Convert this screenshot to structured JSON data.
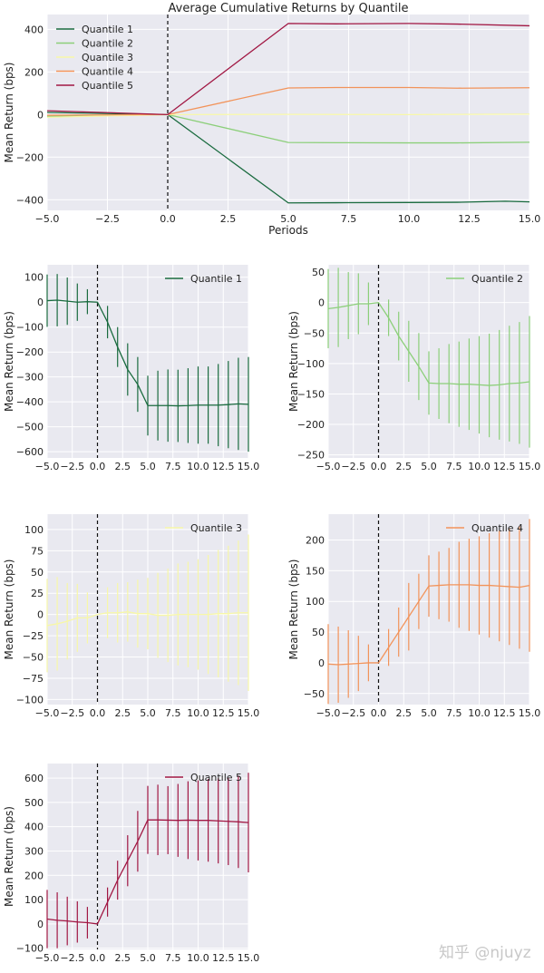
{
  "colors": {
    "Quantile 1": "#1a6b3f",
    "Quantile 2": "#8ccf7a",
    "Quantile 3": "#f7f7a8",
    "Quantile 4": "#f2935a",
    "Quantile 5": "#a11743",
    "plot_bg": "#e9e9f0",
    "grid": "#ffffff",
    "text": "#222222"
  },
  "watermark": "知乎 @njuyz",
  "chart_data": [
    {
      "type": "line",
      "title": "Average Cumulative Returns by Quantile",
      "xlabel": "Periods",
      "ylabel": "Mean Return (bps)",
      "xlim": [
        -5,
        15
      ],
      "ylim": [
        -450,
        470
      ],
      "xticks": [
        -5,
        -2.5,
        0,
        2.5,
        5,
        7.5,
        10,
        12.5,
        15
      ],
      "xtick_labels": [
        "−5.0",
        "−2.5",
        "0.0",
        "2.5",
        "5.0",
        "7.5",
        "10.0",
        "12.5",
        "15.0"
      ],
      "yticks": [
        -400,
        -200,
        0,
        200,
        400
      ],
      "ytick_labels": [
        "−400",
        "−200",
        "0",
        "200",
        "400"
      ],
      "legend_position": "top-left",
      "vline_x": 0,
      "series": [
        {
          "name": "Quantile 1",
          "x": [
            -5,
            0,
            5,
            7,
            10,
            12,
            14,
            15
          ],
          "values": [
            10,
            0,
            -415,
            -414,
            -413,
            -412,
            -407,
            -410
          ]
        },
        {
          "name": "Quantile 2",
          "x": [
            -5,
            0,
            5,
            7,
            10,
            12,
            15
          ],
          "values": [
            -8,
            0,
            -131,
            -132,
            -133,
            -133,
            -130
          ]
        },
        {
          "name": "Quantile 3",
          "x": [
            -5,
            0,
            5,
            10,
            15
          ],
          "values": [
            -13,
            0,
            1,
            0,
            2
          ]
        },
        {
          "name": "Quantile 4",
          "x": [
            -5,
            0,
            5,
            7,
            10,
            12,
            15
          ],
          "values": [
            -3,
            0,
            125,
            127,
            127,
            124,
            126
          ]
        },
        {
          "name": "Quantile 5",
          "x": [
            -5,
            0,
            5,
            7,
            10,
            12,
            15
          ],
          "values": [
            18,
            0,
            428,
            426,
            428,
            425,
            417
          ]
        }
      ]
    },
    {
      "type": "line",
      "title": "",
      "xlabel": "",
      "ylabel": "Mean Return (bps)",
      "legend": "Quantile 1",
      "xlim": [
        -5,
        15
      ],
      "ylim": [
        -625,
        150
      ],
      "xticks": [
        -5,
        -2.5,
        0,
        2.5,
        5,
        7.5,
        10,
        12.5,
        15
      ],
      "xtick_labels": [
        "−5.0",
        "−2.5",
        "0.0",
        "2.5",
        "5.0",
        "7.5",
        "10.0",
        "12.5",
        "15.0"
      ],
      "yticks": [
        -600,
        -500,
        -400,
        -300,
        -200,
        -100,
        0,
        100
      ],
      "ytick_labels": [
        "−600",
        "−500",
        "−400",
        "−300",
        "−200",
        "−100",
        "0",
        "100"
      ],
      "legend_position": "top-right",
      "vline_x": 0,
      "x": [
        -5,
        -4,
        -3,
        -2,
        -1,
        0,
        1,
        2,
        3,
        4,
        5,
        6,
        7,
        8,
        9,
        10,
        11,
        12,
        13,
        14,
        15
      ],
      "values": [
        6,
        8,
        4,
        0,
        2,
        0,
        -80,
        -180,
        -270,
        -330,
        -415,
        -415,
        -415,
        -416,
        -415,
        -413,
        -413,
        -413,
        -411,
        -408,
        -410
      ],
      "errors": [
        105,
        105,
        95,
        75,
        50,
        0,
        65,
        80,
        105,
        110,
        120,
        140,
        145,
        145,
        150,
        155,
        155,
        165,
        175,
        185,
        190
      ]
    },
    {
      "type": "line",
      "title": "",
      "xlabel": "",
      "ylabel": "Mean Return (bps)",
      "legend": "Quantile 2",
      "xlim": [
        -5,
        15
      ],
      "ylim": [
        -255,
        62
      ],
      "xticks": [
        -5,
        -2.5,
        0,
        2.5,
        5,
        7.5,
        10,
        12.5,
        15
      ],
      "xtick_labels": [
        "−5.0",
        "−2.5",
        "0.0",
        "2.5",
        "5.0",
        "7.5",
        "10.0",
        "12.5",
        "15.0"
      ],
      "yticks": [
        -250,
        -200,
        -150,
        -100,
        -50,
        0,
        50
      ],
      "ytick_labels": [
        "−250",
        "−200",
        "−150",
        "−100",
        "−50",
        "0",
        "50"
      ],
      "legend_position": "top-right",
      "vline_x": 0,
      "x": [
        -5,
        -4,
        -3,
        -2,
        -1,
        0,
        1,
        2,
        3,
        4,
        5,
        6,
        7,
        8,
        9,
        10,
        11,
        12,
        13,
        14,
        15
      ],
      "values": [
        -10,
        -8,
        -5,
        -2,
        -2,
        0,
        -25,
        -55,
        -80,
        -105,
        -132,
        -133,
        -133,
        -134,
        -134,
        -135,
        -136,
        -135,
        -133,
        -132,
        -130
      ],
      "errors": [
        65,
        65,
        55,
        50,
        35,
        0,
        30,
        40,
        50,
        55,
        52,
        58,
        65,
        70,
        75,
        80,
        85,
        90,
        95,
        100,
        108
      ]
    },
    {
      "type": "line",
      "title": "",
      "xlabel": "",
      "ylabel": "Mean Return (bps)",
      "legend": "Quantile 3",
      "xlim": [
        -5,
        15
      ],
      "ylim": [
        -106,
        118
      ],
      "xticks": [
        -5,
        -2.5,
        0,
        2.5,
        5,
        7.5,
        10,
        12.5,
        15
      ],
      "xtick_labels": [
        "−5.0",
        "−2.5",
        "0.0",
        "2.5",
        "5.0",
        "7.5",
        "10.0",
        "12.5",
        "15.0"
      ],
      "yticks": [
        -100,
        -75,
        -50,
        -25,
        0,
        25,
        50,
        75,
        100
      ],
      "ytick_labels": [
        "−100",
        "−75",
        "−50",
        "−25",
        "0",
        "25",
        "50",
        "75",
        "100"
      ],
      "legend_position": "top-right",
      "vline_x": 0,
      "x": [
        -5,
        -4,
        -3,
        -2,
        -1,
        0,
        1,
        2,
        3,
        4,
        5,
        6,
        7,
        8,
        9,
        10,
        11,
        12,
        13,
        14,
        15
      ],
      "values": [
        -13,
        -11,
        -8,
        -4,
        -4,
        0,
        2,
        2,
        3,
        1,
        1,
        -1,
        -1,
        0,
        0,
        0,
        0,
        1,
        1,
        2,
        2
      ],
      "errors": [
        55,
        55,
        45,
        40,
        30,
        0,
        30,
        35,
        35,
        40,
        42,
        50,
        55,
        60,
        62,
        65,
        70,
        75,
        80,
        85,
        92
      ]
    },
    {
      "type": "line",
      "title": "",
      "xlabel": "",
      "ylabel": "Mean Return (bps)",
      "legend": "Quantile 4",
      "xlim": [
        -5,
        15
      ],
      "ylim": [
        -68,
        242
      ],
      "xticks": [
        -5,
        -2.5,
        0,
        2.5,
        5,
        7.5,
        10,
        12.5,
        15
      ],
      "xtick_labels": [
        "−5.0",
        "−2.5",
        "0.0",
        "2.5",
        "5.0",
        "7.5",
        "10.0",
        "12.5",
        "15.0"
      ],
      "yticks": [
        -50,
        0,
        50,
        100,
        150,
        200
      ],
      "ytick_labels": [
        "−50",
        "0",
        "50",
        "100",
        "150",
        "200"
      ],
      "legend_position": "top-right",
      "vline_x": 0,
      "x": [
        -5,
        -4,
        -3,
        -2,
        -1,
        0,
        1,
        2,
        3,
        4,
        5,
        6,
        7,
        8,
        9,
        10,
        11,
        12,
        13,
        14,
        15
      ],
      "values": [
        -2,
        -3,
        -2,
        -1,
        0,
        0,
        25,
        50,
        75,
        100,
        125,
        126,
        127,
        127,
        127,
        126,
        126,
        125,
        124,
        123,
        126
      ],
      "errors": [
        65,
        62,
        55,
        45,
        30,
        0,
        30,
        40,
        55,
        45,
        50,
        55,
        60,
        70,
        75,
        80,
        85,
        90,
        95,
        100,
        108
      ]
    },
    {
      "type": "line",
      "title": "",
      "xlabel": "",
      "ylabel": "Mean Return (bps)",
      "legend": "Quantile 5",
      "xlim": [
        -5,
        15
      ],
      "ylim": [
        -105,
        660
      ],
      "xticks": [
        -5,
        -2.5,
        0,
        2.5,
        5,
        7.5,
        10,
        12.5,
        15
      ],
      "xtick_labels": [
        "−5.0",
        "−2.5",
        "0.0",
        "2.5",
        "5.0",
        "7.5",
        "10.0",
        "12.5",
        "15.0"
      ],
      "yticks": [
        -100,
        0,
        100,
        200,
        300,
        400,
        500,
        600
      ],
      "ytick_labels": [
        "−100",
        "0",
        "100",
        "200",
        "300",
        "400",
        "500",
        "600"
      ],
      "legend_position": "top-right",
      "vline_x": 0,
      "x": [
        -5,
        -4,
        -3,
        -2,
        -1,
        0,
        1,
        2,
        3,
        4,
        5,
        6,
        7,
        8,
        9,
        10,
        11,
        12,
        13,
        14,
        15
      ],
      "values": [
        20,
        15,
        12,
        8,
        5,
        0,
        90,
        180,
        260,
        340,
        428,
        428,
        427,
        426,
        427,
        426,
        426,
        424,
        422,
        420,
        417
      ],
      "errors": [
        120,
        115,
        100,
        85,
        65,
        0,
        60,
        80,
        105,
        125,
        140,
        145,
        140,
        150,
        160,
        165,
        170,
        175,
        180,
        190,
        205
      ]
    }
  ]
}
